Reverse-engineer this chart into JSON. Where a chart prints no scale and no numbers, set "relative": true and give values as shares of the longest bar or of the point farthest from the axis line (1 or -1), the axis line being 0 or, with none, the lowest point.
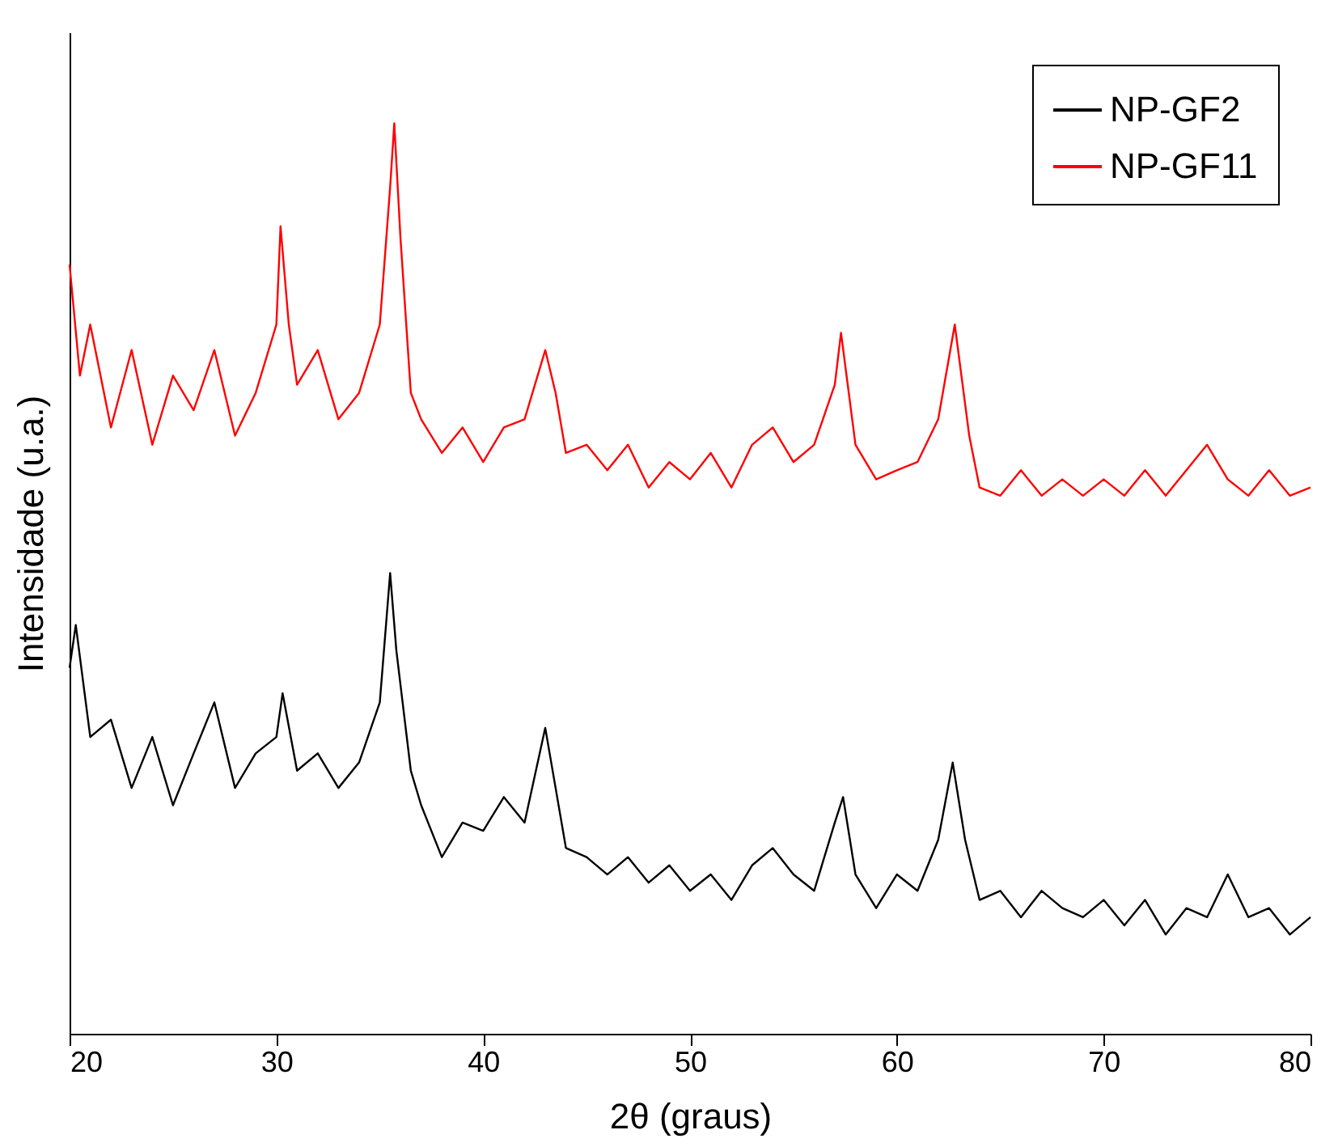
{
  "chart_data": {
    "type": "line",
    "relative": true,
    "xlabel": "2θ (graus)",
    "ylabel": "Intensidade (u.a.)",
    "xlim": [
      20,
      80
    ],
    "xticks": [
      20,
      30,
      40,
      50,
      60,
      70,
      80
    ],
    "legend": "top right",
    "grid": false,
    "series": [
      {
        "name": "NP-GF2",
        "color": "#000000",
        "x": [
          20,
          20.3,
          21,
          22,
          23,
          24,
          25,
          26,
          27,
          28,
          29,
          30,
          30.3,
          31,
          32,
          33,
          34,
          35,
          35.5,
          35.8,
          36.5,
          37,
          38,
          39,
          40,
          41,
          42,
          43,
          43.5,
          44,
          45,
          46,
          47,
          48,
          49,
          50,
          51,
          52,
          53,
          54,
          55,
          56,
          57,
          57.4,
          58,
          59,
          60,
          61,
          62,
          62.7,
          63.3,
          64,
          65,
          66,
          67,
          68,
          69,
          70,
          71,
          72,
          73,
          74,
          75,
          76,
          77,
          78,
          79,
          80
        ],
        "values": [
          0.402,
          0.449,
          0.326,
          0.345,
          0.27,
          0.326,
          0.251,
          0.308,
          0.364,
          0.27,
          0.308,
          0.326,
          0.374,
          0.289,
          0.308,
          0.27,
          0.298,
          0.364,
          0.506,
          0.421,
          0.289,
          0.251,
          0.194,
          0.232,
          0.223,
          0.26,
          0.232,
          0.336,
          0.27,
          0.204,
          0.194,
          0.175,
          0.194,
          0.166,
          0.185,
          0.157,
          0.175,
          0.147,
          0.185,
          0.204,
          0.175,
          0.157,
          0.232,
          0.26,
          0.175,
          0.138,
          0.175,
          0.157,
          0.213,
          0.298,
          0.213,
          0.147,
          0.157,
          0.128,
          0.157,
          0.138,
          0.128,
          0.147,
          0.119,
          0.147,
          0.109,
          0.138,
          0.128,
          0.175,
          0.128,
          0.138,
          0.109,
          0.128
        ]
      },
      {
        "name": "NP-GF11",
        "color": "#ff0000",
        "x": [
          20,
          20.5,
          21,
          22,
          23,
          24,
          25,
          26,
          27,
          28,
          29,
          30,
          30.2,
          30.6,
          31,
          32,
          33,
          34,
          35,
          35.5,
          35.7,
          36,
          36.5,
          37,
          38,
          39,
          40,
          41,
          42,
          43,
          43.5,
          44,
          45,
          46,
          47,
          48,
          49,
          50,
          51,
          52,
          53,
          54,
          55,
          56,
          57,
          57.3,
          58,
          59,
          60,
          61,
          62,
          62.8,
          63.5,
          64,
          65,
          66,
          67,
          68,
          69,
          70,
          71,
          72,
          73,
          74,
          75,
          76,
          77,
          78,
          79,
          80
        ],
        "values": [
          0.845,
          0.723,
          0.779,
          0.666,
          0.751,
          0.647,
          0.723,
          0.685,
          0.751,
          0.657,
          0.704,
          0.779,
          0.887,
          0.779,
          0.713,
          0.751,
          0.675,
          0.704,
          0.779,
          0.93,
          1,
          0.874,
          0.704,
          0.675,
          0.638,
          0.666,
          0.628,
          0.666,
          0.675,
          0.751,
          0.704,
          0.638,
          0.647,
          0.619,
          0.647,
          0.6,
          0.628,
          0.609,
          0.638,
          0.6,
          0.647,
          0.666,
          0.628,
          0.647,
          0.713,
          0.77,
          0.647,
          0.609,
          0.619,
          0.628,
          0.675,
          0.779,
          0.657,
          0.6,
          0.591,
          0.619,
          0.591,
          0.609,
          0.591,
          0.609,
          0.591,
          0.619,
          0.591,
          0.619,
          0.647,
          0.609,
          0.591,
          0.619,
          0.591,
          0.6
        ]
      }
    ]
  }
}
